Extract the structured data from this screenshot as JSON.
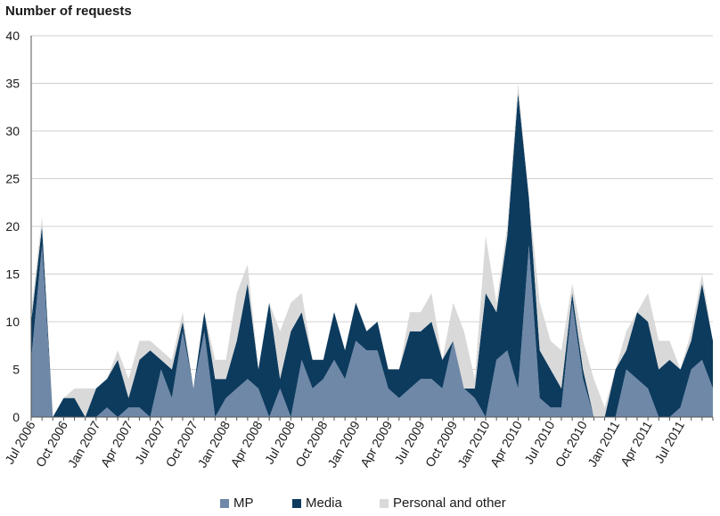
{
  "chart_data": {
    "type": "area",
    "stacked": true,
    "title": "Number of requests",
    "xlabel": "",
    "ylabel": "Number of requests",
    "ylim": [
      0,
      40
    ],
    "yticks": [
      0,
      5,
      10,
      15,
      20,
      25,
      30,
      35,
      40
    ],
    "grid": true,
    "legend_position": "bottom",
    "x_tick_labels": [
      "Jul 2006",
      "Oct 2006",
      "Jan 2007",
      "Apr 2007",
      "Jul 2007",
      "Oct 2007",
      "Jan 2008",
      "Apr 2008",
      "Jul 2008",
      "Oct 2008",
      "Jan 2009",
      "Apr 2009",
      "Jul 2009",
      "Oct 2009",
      "Jan 2010",
      "Apr 2010",
      "Jul 2010",
      "Oct 2010",
      "Jan 2011",
      "Apr 2011",
      "Jul 2011"
    ],
    "months_count": 64,
    "series": [
      {
        "name": "MP",
        "color": "#6f88a8",
        "values": [
          6,
          18,
          0,
          0,
          0,
          0,
          0,
          1,
          0,
          1,
          1,
          0,
          5,
          2,
          9,
          3,
          9,
          0,
          2,
          3,
          4,
          3,
          0,
          3,
          0,
          6,
          3,
          4,
          6,
          4,
          8,
          7,
          7,
          3,
          2,
          3,
          4,
          4,
          3,
          8,
          3,
          2,
          0,
          6,
          7,
          3,
          18,
          2,
          1,
          1,
          12,
          4,
          0,
          0,
          0,
          5,
          4,
          3,
          0,
          0,
          1,
          5,
          6,
          3
        ]
      },
      {
        "name": "Media",
        "color": "#0d3b5e",
        "values": [
          4,
          2,
          0,
          2,
          2,
          0,
          3,
          3,
          6,
          1,
          5,
          7,
          1,
          3,
          1,
          0,
          2,
          4,
          2,
          5,
          10,
          2,
          12,
          1,
          9,
          5,
          3,
          2,
          5,
          3,
          4,
          2,
          3,
          2,
          3,
          6,
          5,
          6,
          3,
          0,
          0,
          1,
          13,
          5,
          12,
          31,
          5,
          5,
          4,
          2,
          1,
          1,
          0,
          0,
          5,
          2,
          7,
          7,
          5,
          6,
          4,
          3,
          8,
          5
        ]
      },
      {
        "name": "Personal and other",
        "color": "#d9d9d9",
        "values": [
          1,
          1,
          0,
          0,
          1,
          3,
          0,
          0,
          1,
          2,
          2,
          1,
          1,
          1,
          1,
          0,
          0,
          2,
          2,
          5,
          2,
          0,
          0,
          5,
          3,
          2,
          0,
          0,
          0,
          0,
          0,
          0,
          0,
          0,
          0,
          2,
          2,
          3,
          0,
          4,
          6,
          1,
          6,
          1,
          1,
          1,
          0,
          5,
          3,
          4,
          1,
          3,
          4,
          1,
          0,
          2,
          0,
          3,
          3,
          2,
          0,
          1,
          1,
          0
        ]
      }
    ]
  }
}
